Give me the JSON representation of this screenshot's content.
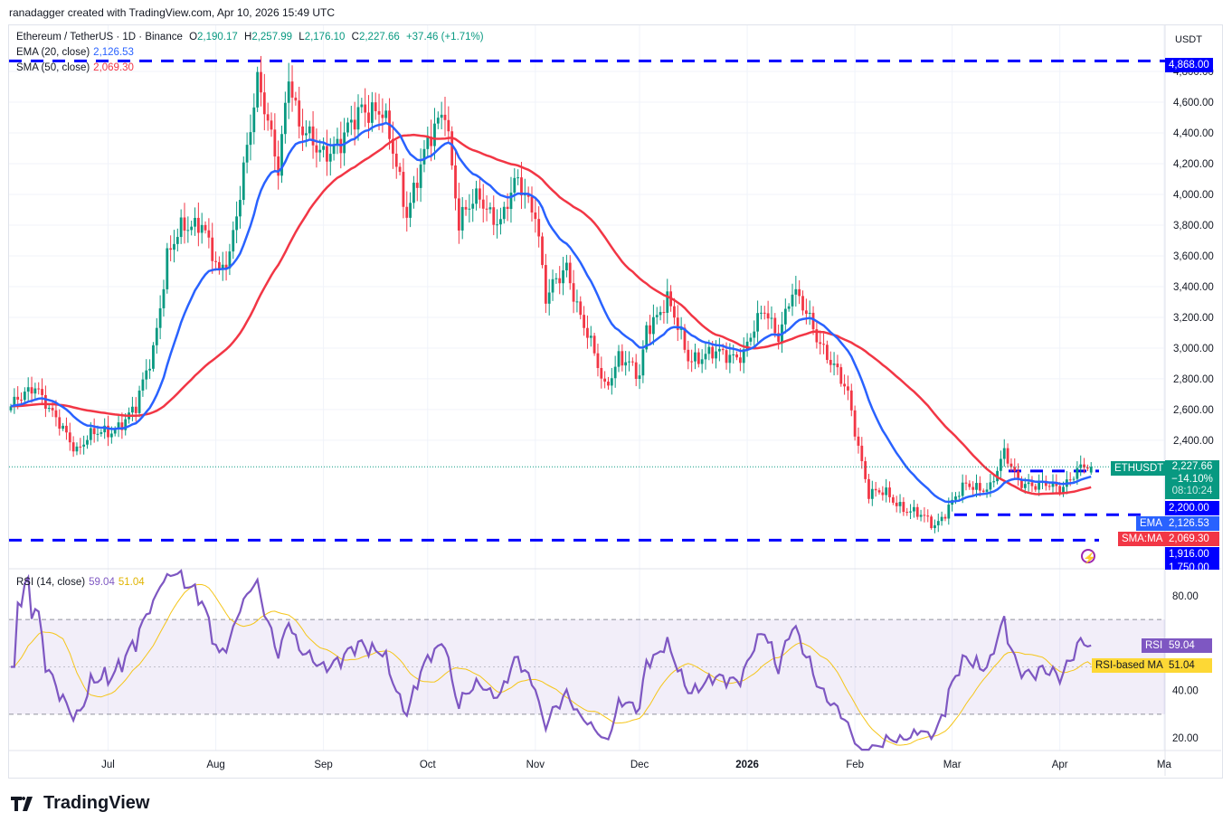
{
  "credit": "ranadagger created with TradingView.com, Apr 10, 2026 15:49 UTC",
  "legend": {
    "symbol": "Ethereum / TetherUS · 1D · Binance",
    "o_label": "O",
    "o": "2,190.17",
    "h_label": "H",
    "h": "2,257.99",
    "l_label": "L",
    "l": "2,176.10",
    "c_label": "C",
    "c": "2,227.66",
    "change": "+37.46 (+1.71%)",
    "ema_label": "EMA (20, close)",
    "ema_value": "2,126.53",
    "sma_label": "SMA (50, close)",
    "sma_value": "2,069.30",
    "rsi_label": "RSI (14, close)",
    "rsi_value": "59.04",
    "rsi_ma_value": "51.04"
  },
  "currency": "USDT",
  "logo": "TradingView",
  "price_tags": {
    "symbol": "ETHUSDT",
    "price": "2,227.66",
    "pct": "−14.10%",
    "countdown": "08:10:24",
    "level_2200": "2,200.00",
    "ema_label": "EMA",
    "ema": "2,126.53",
    "sma_label": "SMA:MA",
    "sma": "2,069.30",
    "level_1916": "1,916.00",
    "level_1750": "1,750.00",
    "level_4868": "4,868.00",
    "rsi_label": "RSI",
    "rsi": "59.04",
    "rsi_ma_label": "RSI-based MA",
    "rsi_ma": "51.04"
  },
  "colors": {
    "up": "#089981",
    "down": "#f23645",
    "ema": "#2962ff",
    "sma": "#f23645",
    "rsi": "#7e57c2",
    "rsi_ma": "#f5c518",
    "levels": "#0000ff"
  },
  "chart_data": [
    {
      "type": "candlestick",
      "title": "Ethereum / TetherUS · 1D · Binance",
      "start_date": "2025-06-03",
      "ylim": [
        1570,
        5100
      ],
      "y_ticks": [
        "4,800.00",
        "4,600.00",
        "4,400.00",
        "4,200.00",
        "4,000.00",
        "3,800.00",
        "3,600.00",
        "3,400.00",
        "3,200.00",
        "3,000.00",
        "2,800.00",
        "2,600.00",
        "2,400.00"
      ],
      "y_tick_values": [
        4800,
        4600,
        4400,
        4200,
        4000,
        3800,
        3600,
        3400,
        3200,
        3000,
        2800,
        2600,
        2400
      ],
      "x_ticks": [
        {
          "label": "Jul",
          "date": "2025-07-01"
        },
        {
          "label": "Aug",
          "date": "2025-08-01"
        },
        {
          "label": "Sep",
          "date": "2025-09-01"
        },
        {
          "label": "Oct",
          "date": "2025-10-01"
        },
        {
          "label": "Nov",
          "date": "2025-11-01"
        },
        {
          "label": "Dec",
          "date": "2025-12-01"
        },
        {
          "label": "2026",
          "date": "2026-01-01"
        },
        {
          "label": "Feb",
          "date": "2026-02-01"
        },
        {
          "label": "Mar",
          "date": "2026-03-01"
        },
        {
          "label": "Apr",
          "date": "2026-04-01"
        },
        {
          "label": "Ma",
          "date": "2026-05-01"
        }
      ],
      "approx_closes": [
        [
          "2025-06-03",
          2600
        ],
        [
          "2025-06-10",
          2780
        ],
        [
          "2025-06-15",
          2550
        ],
        [
          "2025-06-22",
          2350
        ],
        [
          "2025-06-25",
          2420
        ],
        [
          "2025-07-01",
          2450
        ],
        [
          "2025-07-09",
          2600
        ],
        [
          "2025-07-14",
          3000
        ],
        [
          "2025-07-18",
          3600
        ],
        [
          "2025-07-22",
          3750
        ],
        [
          "2025-07-28",
          3850
        ],
        [
          "2025-08-02",
          3450
        ],
        [
          "2025-08-05",
          3600
        ],
        [
          "2025-08-09",
          4200
        ],
        [
          "2025-08-13",
          4700
        ],
        [
          "2025-08-19",
          4200
        ],
        [
          "2025-08-22",
          4800
        ],
        [
          "2025-08-25",
          4400
        ],
        [
          "2025-09-01",
          4300
        ],
        [
          "2025-09-06",
          4300
        ],
        [
          "2025-09-12",
          4600
        ],
        [
          "2025-09-18",
          4500
        ],
        [
          "2025-09-22",
          4200
        ],
        [
          "2025-09-25",
          3900
        ],
        [
          "2025-10-01",
          4300
        ],
        [
          "2025-10-06",
          4600
        ],
        [
          "2025-10-10",
          3800
        ],
        [
          "2025-10-16",
          4000
        ],
        [
          "2025-10-22",
          3800
        ],
        [
          "2025-10-27",
          4100
        ],
        [
          "2025-11-01",
          3900
        ],
        [
          "2025-11-04",
          3300
        ],
        [
          "2025-11-10",
          3550
        ],
        [
          "2025-11-14",
          3200
        ],
        [
          "2025-11-21",
          2750
        ],
        [
          "2025-11-25",
          2950
        ],
        [
          "2025-12-01",
          2800
        ],
        [
          "2025-12-03",
          3150
        ],
        [
          "2025-12-09",
          3300
        ],
        [
          "2025-12-15",
          2950
        ],
        [
          "2025-12-22",
          2950
        ],
        [
          "2025-12-31",
          2970
        ],
        [
          "2026-01-06",
          3250
        ],
        [
          "2026-01-10",
          3100
        ],
        [
          "2026-01-14",
          3350
        ],
        [
          "2026-01-19",
          3200
        ],
        [
          "2026-01-25",
          2900
        ],
        [
          "2026-01-30",
          2700
        ],
        [
          "2026-02-05",
          2050
        ],
        [
          "2026-02-10",
          2050
        ],
        [
          "2026-02-16",
          1950
        ],
        [
          "2026-02-24",
          1850
        ],
        [
          "2026-03-01",
          2000
        ],
        [
          "2026-03-05",
          2100
        ],
        [
          "2026-03-12",
          2100
        ],
        [
          "2026-03-16",
          2300
        ],
        [
          "2026-03-20",
          2150
        ],
        [
          "2026-03-25",
          2100
        ],
        [
          "2026-04-01",
          2100
        ],
        [
          "2026-04-06",
          2200
        ],
        [
          "2026-04-10",
          2227.66
        ]
      ],
      "last_candle": {
        "open": 2190.17,
        "high": 2257.99,
        "low": 2176.1,
        "close": 2227.66
      },
      "horizontal_levels": [
        4868,
        2200,
        1916,
        1750
      ],
      "indicators": [
        "EMA (20, close)",
        "SMA (50, close)"
      ]
    },
    {
      "type": "line",
      "title": "RSI (14, close)",
      "ylim": [
        15,
        95
      ],
      "y_ticks": [
        "80.00",
        "40.00",
        "20.00"
      ],
      "y_tick_values": [
        80,
        40,
        20
      ],
      "bands": [
        30,
        50,
        70
      ],
      "series": [
        {
          "name": "RSI",
          "last": 59.04
        },
        {
          "name": "RSI-based MA",
          "last": 51.04
        }
      ]
    }
  ]
}
